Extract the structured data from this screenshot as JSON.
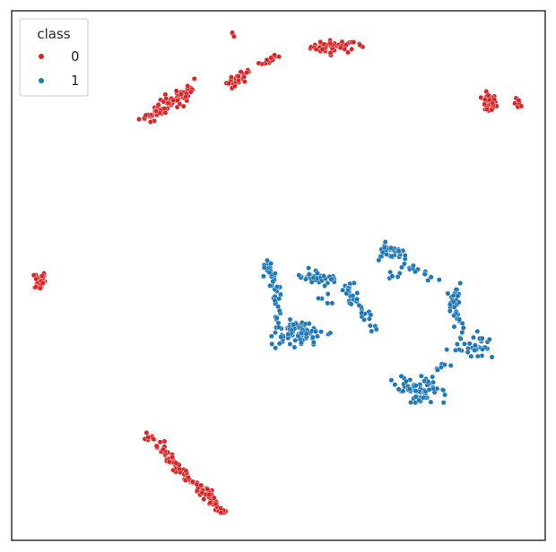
{
  "chart_data": {
    "type": "scatter",
    "title": "",
    "xlabel": "",
    "ylabel": "",
    "xlim": [
      0,
      100
    ],
    "ylim": [
      0,
      100
    ],
    "grid": false,
    "ticks_visible": false,
    "legend": {
      "title": "class",
      "placement": "top-left"
    },
    "colors": {
      "0": "#d62728",
      "1": "#1f77b4"
    },
    "series": [
      {
        "name": "0",
        "clusters": [
          {
            "cx": 41.5,
            "cy": 95.3,
            "sx": 0.4,
            "sy": 0.4,
            "n": 3
          },
          {
            "cx": 60.5,
            "cy": 93.2,
            "sx": 2.2,
            "sy": 0.6,
            "n": 45
          },
          {
            "cx": 65.5,
            "cy": 94.0,
            "sx": 0.4,
            "sy": 0.4,
            "n": 3
          },
          {
            "cx": 89.4,
            "cy": 82.5,
            "sx": 0.7,
            "sy": 0.9,
            "n": 40
          },
          {
            "cx": 95.0,
            "cy": 82.4,
            "sx": 0.4,
            "sy": 0.5,
            "n": 12
          },
          {
            "cx": 5.3,
            "cy": 49.1,
            "sx": 0.5,
            "sy": 0.9,
            "n": 30
          }
        ],
        "segments": [
          {
            "x1": 24.7,
            "y1": 79.4,
            "x2": 34.2,
            "y2": 85.5,
            "n": 80,
            "jitter": 0.6
          },
          {
            "x1": 40.3,
            "y1": 86.0,
            "x2": 44.5,
            "y2": 88.5,
            "n": 35,
            "jitter": 0.5
          },
          {
            "x1": 46.8,
            "y1": 89.8,
            "x2": 49.6,
            "y2": 91.1,
            "n": 12,
            "jitter": 0.4
          },
          {
            "x1": 25.6,
            "y1": 19.5,
            "x2": 39.8,
            "y2": 5.1,
            "n": 110,
            "jitter": 0.5
          }
        ]
      },
      {
        "name": "1",
        "clusters": [
          {
            "cx": 53.6,
            "cy": 39.1,
            "sx": 2.3,
            "sy": 1.1,
            "n": 90
          },
          {
            "cx": 56.2,
            "cy": 49.8,
            "sx": 1.4,
            "sy": 0.6,
            "n": 30
          },
          {
            "cx": 76.2,
            "cy": 28.2,
            "sx": 2.4,
            "sy": 1.1,
            "n": 70
          },
          {
            "cx": 71.4,
            "cy": 54.4,
            "sx": 1.5,
            "sy": 0.7,
            "n": 35
          },
          {
            "cx": 83.0,
            "cy": 45.8,
            "sx": 0.6,
            "sy": 1.5,
            "n": 20
          },
          {
            "cx": 87.4,
            "cy": 36.0,
            "sx": 1.4,
            "sy": 0.7,
            "n": 18
          }
        ],
        "segments": [
          {
            "x1": 47.3,
            "y1": 53.3,
            "x2": 49.5,
            "y2": 48.0,
            "n": 22,
            "jitter": 0.6
          },
          {
            "x1": 49.4,
            "y1": 48.0,
            "x2": 50.3,
            "y2": 40.2,
            "n": 22,
            "jitter": 0.6
          },
          {
            "x1": 58.2,
            "y1": 49.3,
            "x2": 63.8,
            "y2": 47.6,
            "n": 20,
            "jitter": 0.6
          },
          {
            "x1": 63.0,
            "y1": 47.0,
            "x2": 66.8,
            "y2": 42.3,
            "n": 22,
            "jitter": 0.6
          },
          {
            "x1": 66.0,
            "y1": 43.5,
            "x2": 67.3,
            "y2": 39.0,
            "n": 6,
            "jitter": 0.8
          },
          {
            "x1": 55.9,
            "y1": 45.2,
            "x2": 59.6,
            "y2": 45.6,
            "n": 5,
            "jitter": 0.6
          },
          {
            "x1": 70.0,
            "y1": 51.2,
            "x2": 72.4,
            "y2": 50.1,
            "n": 6,
            "jitter": 0.6
          },
          {
            "x1": 73.5,
            "y1": 51.6,
            "x2": 80.0,
            "y2": 49.2,
            "n": 16,
            "jitter": 0.5
          },
          {
            "x1": 82.8,
            "y1": 43.6,
            "x2": 84.8,
            "y2": 37.8,
            "n": 14,
            "jitter": 0.6
          },
          {
            "x1": 79.5,
            "y1": 32.0,
            "x2": 84.3,
            "y2": 36.9,
            "n": 12,
            "jitter": 0.6
          },
          {
            "x1": 84.5,
            "y1": 35.9,
            "x2": 88.7,
            "y2": 37.3,
            "n": 8,
            "jitter": 0.5
          },
          {
            "x1": 86.9,
            "y1": 38.6,
            "x2": 89.3,
            "y2": 37.6,
            "n": 5,
            "jitter": 0.5
          }
        ]
      }
    ]
  }
}
